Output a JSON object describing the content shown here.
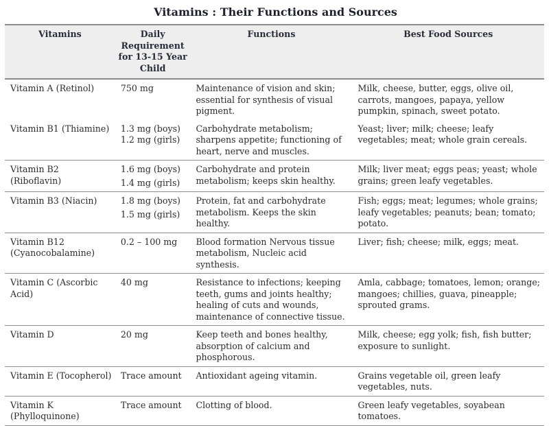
{
  "title": "Vitamins : Their Functions and Sources",
  "headers": {
    "vitamins": "Vitamins",
    "requirement": "Daily Requirement for 13-15 Year Child",
    "functions": "Functions",
    "sources": "Best Food Sources"
  },
  "rows": [
    {
      "vitamin": "Vitamin A (Retinol)",
      "requirement": [
        "750 mg"
      ],
      "functions": "Maintenance of vision and skin; essential for synthesis of visual pigment.",
      "sources": "Milk, cheese, butter, eggs, olive oil, carrots, mangoes, papaya, yellow pumpkin, spinach, sweet potato."
    },
    {
      "vitamin": "Vitamin B1 (Thiamine)",
      "requirement": [
        "1.3 mg (boys)",
        "1.2 mg (girls)"
      ],
      "functions": "Carbohydrate metabolism; sharpens appetite; functioning of heart, nerve and muscles.",
      "sources": "Yeast; liver; milk; cheese; leafy vegetables; meat; whole grain cereals."
    },
    {
      "vitamin": "Vitamin B2 (Riboflavin)",
      "requirement": [
        "1.6 mg (boys)",
        "1.4 mg (girls)"
      ],
      "functions": "Carbohydrate and protein metabolism; keeps skin healthy.",
      "sources": "Milk; liver meat; eggs peas; yeast; whole grains; green leafy vegetables."
    },
    {
      "vitamin": "Vitamin B3 (Niacin)",
      "requirement": [
        "1.8 mg (boys)",
        "1.5 mg (girls)"
      ],
      "functions": "Protein, fat and carbohydrate metabolism. Keeps the skin healthy.",
      "sources": "Fish; eggs; meat; legumes; whole grains; leafy vegetables; peanuts; bean; tomato; potato."
    },
    {
      "vitamin": "Vitamin B12 (Cyanocobalamine)",
      "requirement": [
        "0.2 – 100 mg"
      ],
      "functions": "Blood formation Nervous tissue metabolism, Nucleic acid synthesis.",
      "sources": "Liver; fish; cheese; milk, eggs; meat."
    },
    {
      "vitamin": "Vitamin C (Ascorbic Acid)",
      "requirement": [
        "40 mg"
      ],
      "functions": "Resistance to infections; keeping teeth, gums and joints healthy; healing of cuts and wounds, maintenance of connective tissue.",
      "sources": "Amla, cabbage; tomatoes, lemon; orange; mangoes; chillies, guava, pineapple; sprouted grams."
    },
    {
      "vitamin": "Vitamin D",
      "requirement": [
        "20 mg"
      ],
      "functions": "Keep teeth and bones healthy, absorption of calcium and phosphorous.",
      "sources": "Milk, cheese; egg yolk; fish, fish butter; exposure to sunlight."
    },
    {
      "vitamin": "Vitamin E (Tocopherol)",
      "requirement": [
        "Trace amount"
      ],
      "functions": "Antioxidant ageing vitamin.",
      "sources": "Grains vegetable oil, green leafy vegetables, nuts."
    },
    {
      "vitamin": "Vitamin K (Phylloquinone)",
      "requirement": [
        "Trace amount"
      ],
      "functions": "Clotting of blood.",
      "sources": "Green leafy vegetables, soyabean tomatoes."
    }
  ]
}
